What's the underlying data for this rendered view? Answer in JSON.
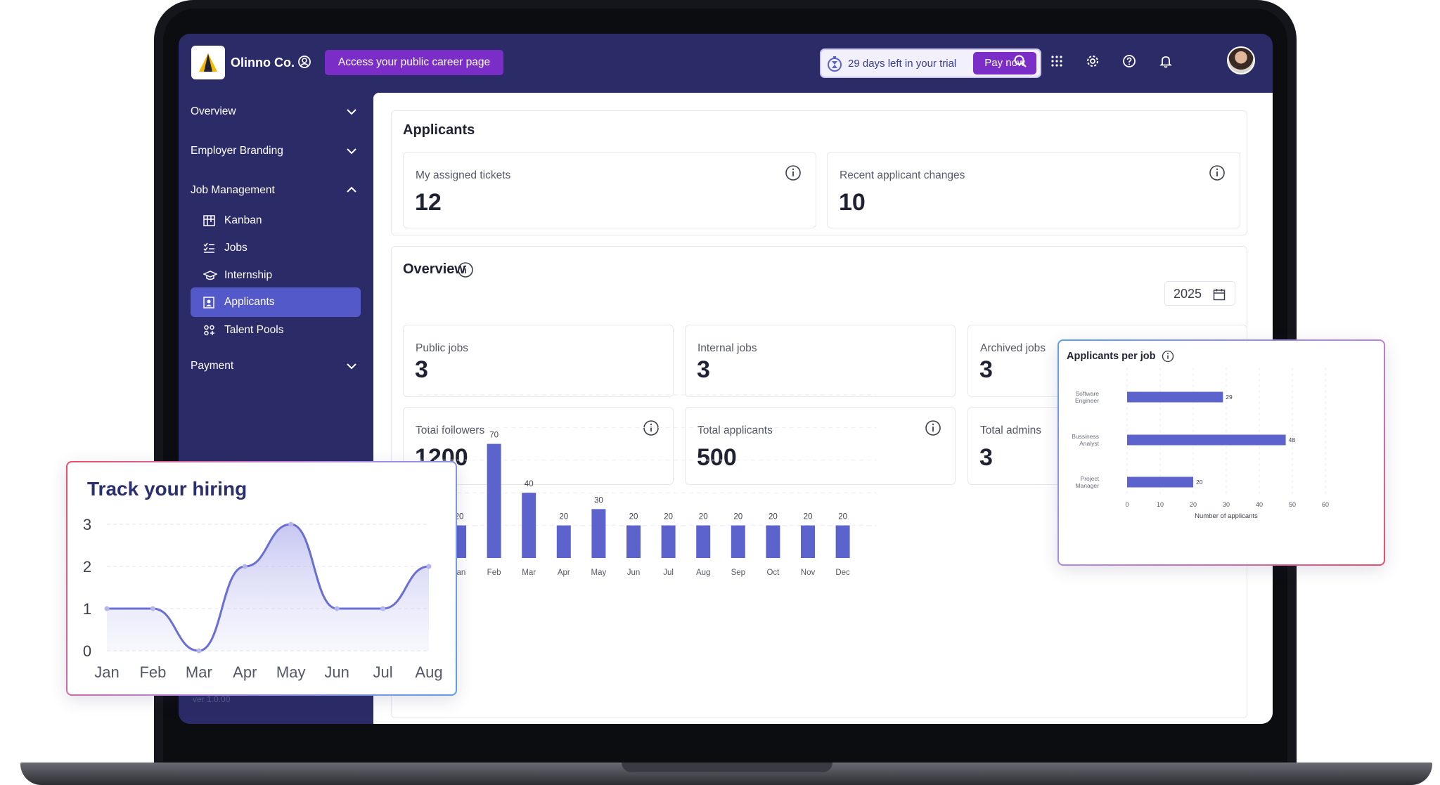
{
  "topbar": {
    "company": "Olinno Co.",
    "career_button": "Access your public career page",
    "trial_text": "29 days left in your trial",
    "pay_button": "Pay now",
    "icons": [
      "search-icon",
      "apps-grid-icon",
      "settings-icon",
      "help-icon",
      "bell-icon"
    ]
  },
  "sidebar": {
    "sections": [
      {
        "label": "Overview",
        "expanded": false
      },
      {
        "label": "Employer Branding",
        "expanded": false
      },
      {
        "label": "Job Management",
        "expanded": true
      },
      {
        "label": "Payment",
        "expanded": false
      }
    ],
    "job_items": [
      {
        "label": "Kanban",
        "icon": "kanban-icon"
      },
      {
        "label": "Jobs",
        "icon": "checklist-icon"
      },
      {
        "label": "Internship",
        "icon": "graduation-cap-icon"
      },
      {
        "label": "Applicants",
        "icon": "applicant-badge-icon",
        "active": true
      },
      {
        "label": "Talent Pools",
        "icon": "people-icon"
      }
    ],
    "version": "ver 1.0.00"
  },
  "applicants": {
    "title": "Applicants",
    "stats": [
      {
        "label": "My assigned tickets",
        "value": "12"
      },
      {
        "label": "Recent applicant changes",
        "value": "10"
      }
    ]
  },
  "overview": {
    "title": "Overview",
    "year": "2025",
    "stats": [
      {
        "label": "Public jobs",
        "value": "3"
      },
      {
        "label": "Internal jobs",
        "value": "3"
      },
      {
        "label": "Archived jobs",
        "value": "3"
      },
      {
        "label": "Total followers",
        "value": "1200"
      },
      {
        "label": "Total applicants",
        "value": "500"
      },
      {
        "label": "Total admins",
        "value": "3"
      }
    ]
  },
  "colors": {
    "accent": "#7b2ec7",
    "bar": "#5c63cc",
    "sidebar": "#2b2b68"
  },
  "chart_data": [
    {
      "type": "bar",
      "categories": [
        "Jan",
        "Feb",
        "Mar",
        "Apr",
        "May",
        "Jun",
        "Jul",
        "Aug",
        "Sep",
        "Oct",
        "Nov",
        "Dec"
      ],
      "values": [
        20,
        70,
        40,
        20,
        30,
        20,
        20,
        20,
        20,
        20,
        20,
        20
      ],
      "ylim": [
        0,
        100
      ],
      "grid": true
    },
    {
      "type": "area",
      "title": "Track your hiring",
      "categories": [
        "Jan",
        "Feb",
        "Mar",
        "Apr",
        "May",
        "Jun",
        "Jul",
        "Aug"
      ],
      "values": [
        1,
        1,
        0,
        2,
        3,
        1,
        1,
        2
      ],
      "yticks": [
        0,
        1,
        2,
        3
      ],
      "ylim": [
        0,
        3
      ],
      "grid": true
    },
    {
      "type": "bar",
      "orientation": "horizontal",
      "title": "Applicants per job",
      "categories": [
        "Software Engineer",
        "Business Analyst",
        "Project Manager"
      ],
      "category_lines": [
        [
          "Software",
          "Engineer"
        ],
        [
          "Bussiness",
          "Analyst"
        ],
        [
          "Project",
          "Manager"
        ]
      ],
      "values": [
        29,
        48,
        20
      ],
      "xlabel": "Number of applicants",
      "xticks": [
        0,
        10,
        20,
        30,
        40,
        50,
        60
      ],
      "xlim": [
        0,
        60
      ]
    }
  ]
}
